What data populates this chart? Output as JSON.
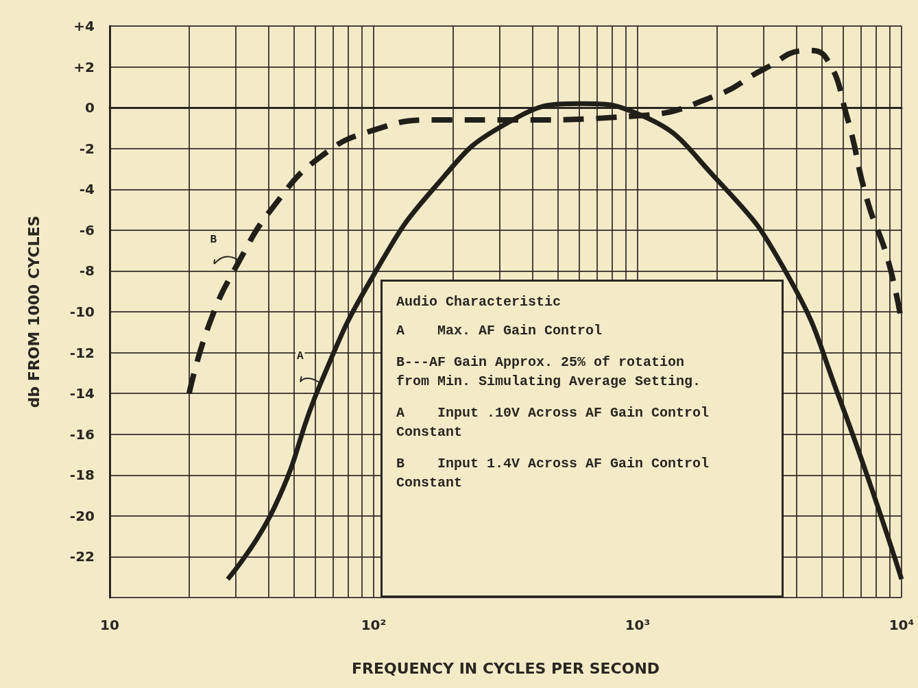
{
  "chart_data": {
    "type": "line",
    "xlabel": "FREQUENCY IN CYCLES PER SECOND",
    "ylabel": "db FROM 1000 CYCLES",
    "log": "x",
    "xlim": [
      10,
      10000
    ],
    "xticks": [
      10,
      {
        "value": 20,
        "label": null
      },
      {
        "value": 30,
        "label": null
      },
      {
        "value": 40,
        "label": null
      },
      {
        "value": 50,
        "label": null
      },
      {
        "value": 60,
        "label": null
      },
      {
        "value": 70,
        "label": null
      },
      {
        "value": 80,
        "label": null
      },
      {
        "value": 90,
        "label": null
      },
      {
        "value": 100,
        "label": "10²"
      },
      {
        "value": 200,
        "label": null
      },
      {
        "value": 300,
        "label": null
      },
      {
        "value": 400,
        "label": null
      },
      {
        "value": 500,
        "label": null
      },
      {
        "value": 600,
        "label": null
      },
      {
        "value": 700,
        "label": null
      },
      {
        "value": 800,
        "label": null
      },
      {
        "value": 900,
        "label": null
      },
      {
        "value": 1000,
        "label": "10³"
      },
      {
        "value": 2000,
        "label": null
      },
      {
        "value": 3000,
        "label": null
      },
      {
        "value": 4000,
        "label": null
      },
      {
        "value": 5000,
        "label": null
      },
      {
        "value": 6000,
        "label": null
      },
      {
        "value": 7000,
        "label": null
      },
      {
        "value": 8000,
        "label": null
      },
      {
        "value": 9000,
        "label": null
      },
      {
        "value": 10000,
        "label": "10⁴"
      }
    ],
    "ylim": [
      -24,
      4
    ],
    "yticks": [
      {
        "value": -24,
        "label": null
      },
      -22,
      -20,
      -18,
      -16,
      -14,
      -12,
      -10,
      -8,
      -6,
      -4,
      -2,
      0,
      {
        "value": 2,
        "label": "+2"
      },
      {
        "value": 4,
        "label": "+4"
      }
    ],
    "grid": true,
    "marker": "none",
    "series": [
      {
        "name": "A",
        "color": "#221e18",
        "line_style": "solid",
        "x": [
          28,
          42,
          63,
          100,
          173,
          316,
          609,
          1000,
          1990,
          3700,
          5800,
          10000
        ],
        "values": [
          -23.1,
          -19.6,
          -13.5,
          -8.2,
          -3.8,
          -0.8,
          0.2,
          -0.3,
          -3.5,
          -8.2,
          -14.2,
          -23.1
        ]
      },
      {
        "name": "B",
        "color": "#221e18",
        "line_style": "dashed",
        "x": [
          20,
          24,
          31,
          42,
          63,
          100,
          173,
          333,
          1000,
          1990,
          3020,
          4380,
          5200,
          6200,
          7400,
          8900,
          10000
        ],
        "values": [
          -14,
          -10.5,
          -7.5,
          -4.8,
          -2.4,
          -1.1,
          -0.6,
          -0.6,
          -0.4,
          0.6,
          1.9,
          2.8,
          2.4,
          -0.4,
          -4.5,
          -7.5,
          -10.5
        ]
      }
    ],
    "annotations": [
      "Audio Characteristic",
      "A    Max. AF Gain Control",
      "B---AF Gain Approx. 25% of rotation from Min. Simulating Average Setting.",
      "A    Input .10V Across AF Gain Control Constant",
      "B    Input 1.4V Across AF Gain Control Constant"
    ]
  }
}
